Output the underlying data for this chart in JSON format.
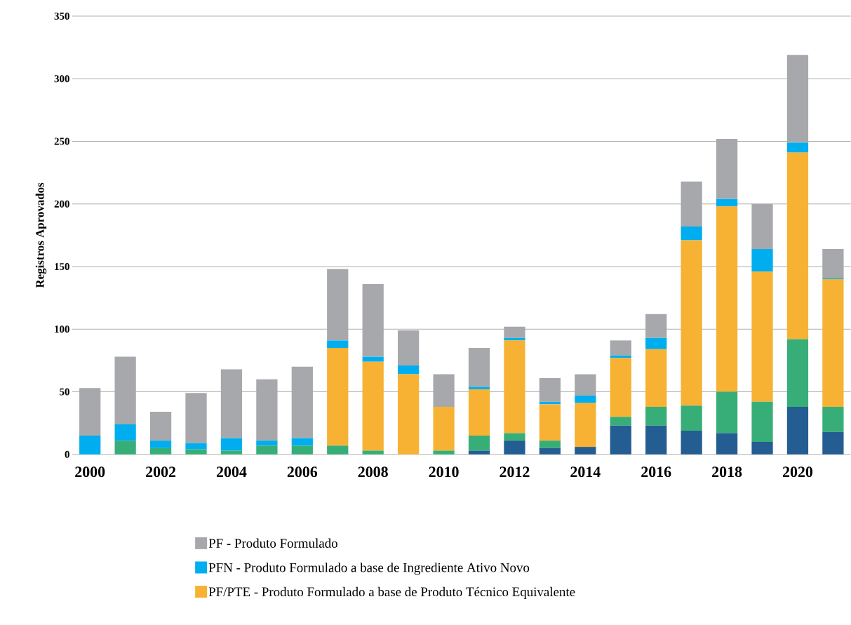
{
  "chart_data": {
    "type": "bar",
    "stacked": true,
    "ylabel": "Registros Aprovados",
    "categories": [
      "2000",
      null,
      "2002",
      null,
      "2004",
      null,
      "2006",
      null,
      "2008",
      null,
      "2010",
      null,
      "2012",
      null,
      "2014",
      null,
      "2016",
      null,
      "2018",
      null,
      "2020",
      null
    ],
    "series": [
      {
        "color": "#245d91",
        "values": [
          0,
          0,
          0,
          0,
          0,
          0,
          0,
          0,
          0,
          0,
          0,
          3,
          11,
          5,
          6,
          23,
          23,
          19,
          17,
          10,
          38,
          18
        ]
      },
      {
        "color": "#37ae78",
        "values": [
          0,
          11,
          5,
          4,
          3,
          7,
          7,
          7,
          3,
          0,
          3,
          12,
          6,
          6,
          0,
          7,
          15,
          20,
          33,
          32,
          54,
          20
        ]
      },
      {
        "name": "PF/PTE - Produto Formulado a base de Produto Técnico Equivalente",
        "color": "#f7b233",
        "values": [
          0,
          0,
          0,
          0,
          0,
          0,
          0,
          78,
          71,
          64,
          35,
          37,
          74,
          29,
          35,
          47,
          46,
          132,
          148,
          104,
          149,
          102
        ]
      },
      {
        "name": "PFN - Produto Formulado a base de Ingrediente Ativo Novo",
        "color": "#00aeef",
        "values": [
          15,
          13,
          6,
          5,
          10,
          4,
          6,
          6,
          4,
          7,
          0,
          2,
          2,
          2,
          6,
          2,
          9,
          11,
          6,
          18,
          8,
          1
        ]
      },
      {
        "name": "PF - Produto Formulado",
        "color": "#a7a8ab",
        "values": [
          38,
          54,
          23,
          40,
          55,
          49,
          57,
          57,
          58,
          28,
          26,
          31,
          9,
          19,
          17,
          12,
          19,
          36,
          48,
          36,
          70,
          23
        ]
      }
    ],
    "ylim": [
      0,
      350
    ],
    "yticks": [
      0,
      50,
      100,
      150,
      200,
      250,
      300,
      350
    ],
    "grid": "y",
    "legend": "bottom"
  }
}
